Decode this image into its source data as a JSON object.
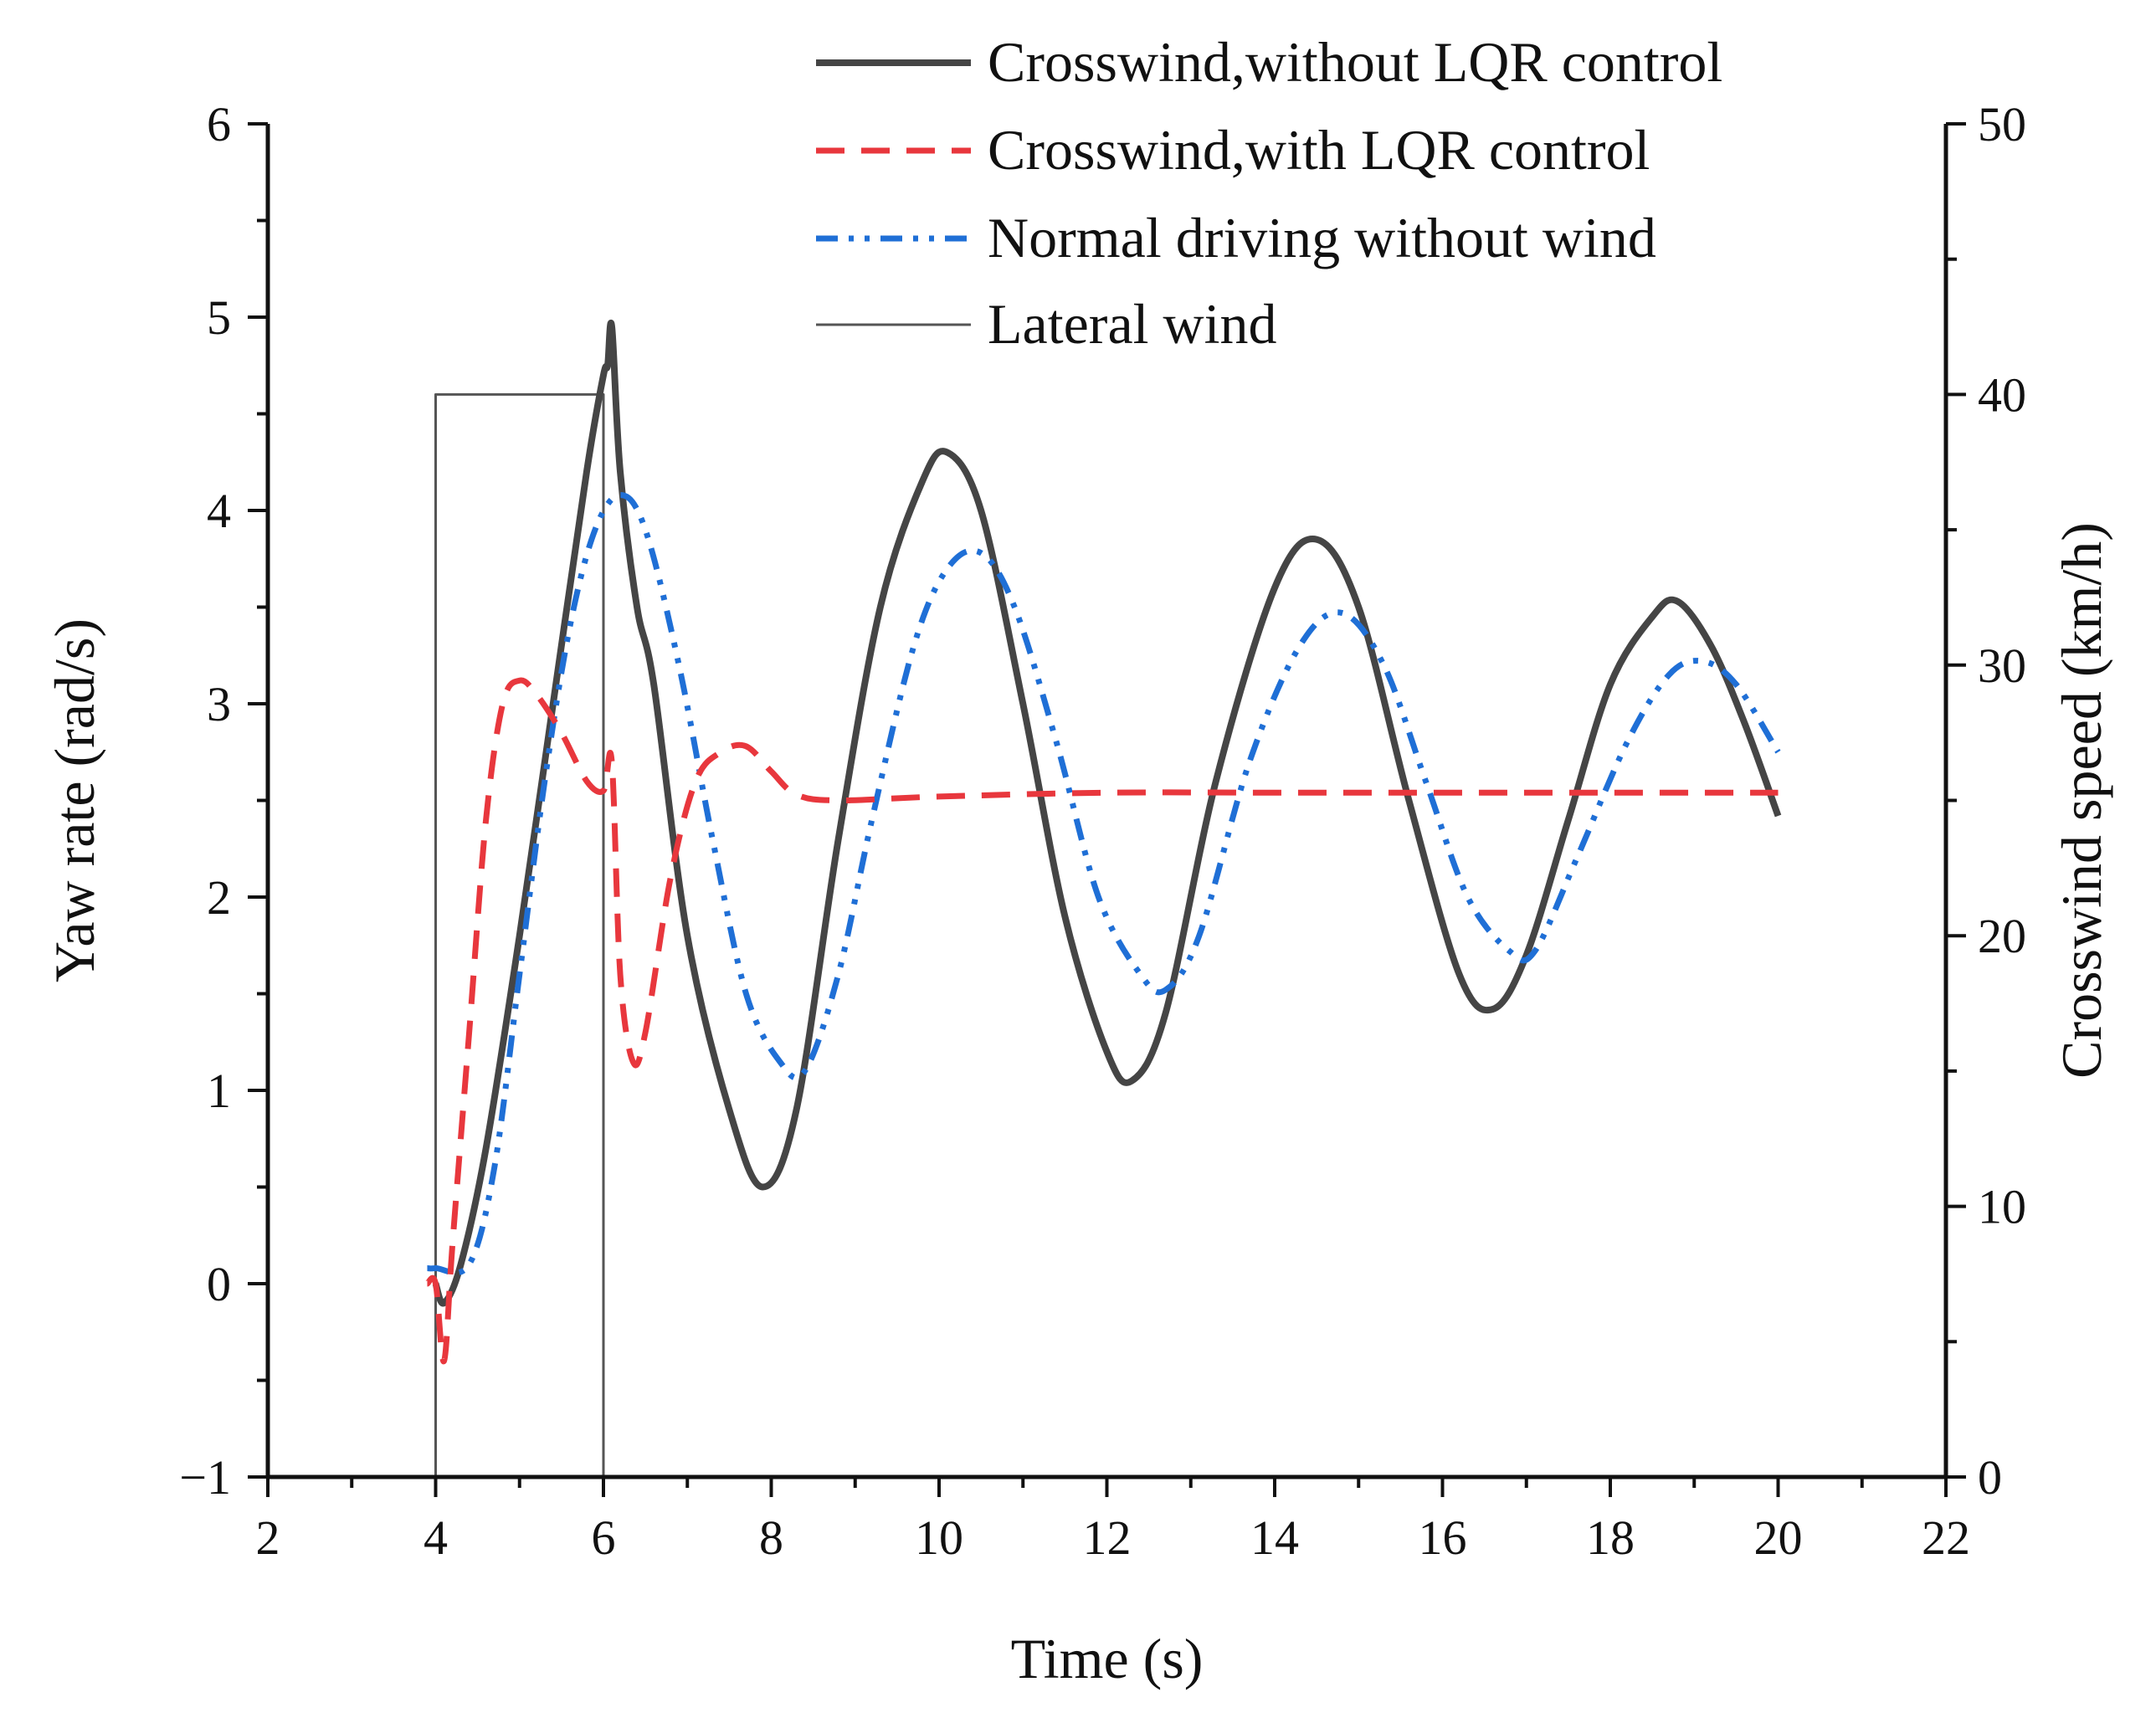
{
  "chart_data": {
    "type": "line",
    "title": "",
    "xlabel": "Time (s)",
    "ylabel": "Yaw rate (rad/s)",
    "y2label": "Crosswind speed (km/h)",
    "xlim": [
      2,
      22
    ],
    "ylim": [
      -1,
      6
    ],
    "y2lim": [
      0,
      50
    ],
    "xticks": [
      2,
      4,
      6,
      8,
      10,
      12,
      14,
      16,
      18,
      20,
      22
    ],
    "xtick_labels": [
      "2",
      "4",
      "6",
      "8",
      "10",
      "12",
      "14",
      "16",
      "18",
      "20",
      "22"
    ],
    "yticks": [
      -1,
      0,
      1,
      2,
      3,
      4,
      5,
      6
    ],
    "ytick_labels": [
      "−1",
      "0",
      "1",
      "2",
      "3",
      "4",
      "5",
      "6"
    ],
    "y2ticks": [
      0,
      10,
      20,
      30,
      40,
      50
    ],
    "y2tick_labels": [
      "0",
      "10",
      "20",
      "30",
      "40",
      "50"
    ],
    "grid": false,
    "legend_position": "top-center",
    "series": [
      {
        "name": "Crosswind,without LQR control",
        "color": "#454545",
        "style": "solid",
        "axis": "left",
        "points": [
          [
            4.0,
            0.0
          ],
          [
            4.1,
            -0.1
          ],
          [
            4.3,
            0.1
          ],
          [
            4.6,
            0.7
          ],
          [
            5.0,
            1.8
          ],
          [
            5.4,
            3.0
          ],
          [
            5.8,
            4.2
          ],
          [
            6.0,
            4.7
          ],
          [
            6.05,
            4.75
          ],
          [
            6.1,
            4.95
          ],
          [
            6.2,
            4.2
          ],
          [
            6.4,
            3.5
          ],
          [
            6.6,
            3.1
          ],
          [
            7.0,
            1.8
          ],
          [
            7.5,
            0.9
          ],
          [
            7.9,
            0.5
          ],
          [
            8.3,
            0.9
          ],
          [
            8.8,
            2.3
          ],
          [
            9.3,
            3.5
          ],
          [
            9.8,
            4.15
          ],
          [
            10.1,
            4.3
          ],
          [
            10.5,
            4.0
          ],
          [
            11.0,
            3.0
          ],
          [
            11.5,
            1.9
          ],
          [
            12.0,
            1.2
          ],
          [
            12.3,
            1.05
          ],
          [
            12.7,
            1.4
          ],
          [
            13.3,
            2.6
          ],
          [
            14.0,
            3.6
          ],
          [
            14.5,
            3.85
          ],
          [
            15.0,
            3.5
          ],
          [
            15.6,
            2.5
          ],
          [
            16.2,
            1.6
          ],
          [
            16.6,
            1.42
          ],
          [
            17.0,
            1.7
          ],
          [
            17.5,
            2.4
          ],
          [
            18.0,
            3.1
          ],
          [
            18.5,
            3.45
          ],
          [
            18.8,
            3.53
          ],
          [
            19.2,
            3.3
          ],
          [
            19.6,
            2.9
          ],
          [
            20.0,
            2.42
          ]
        ]
      },
      {
        "name": "Crosswind,with LQR control",
        "color": "#e8373d",
        "style": "dashed",
        "axis": "left",
        "points": [
          [
            3.9,
            0.0
          ],
          [
            4.0,
            0.0
          ],
          [
            4.1,
            -0.4
          ],
          [
            4.2,
            0.2
          ],
          [
            4.4,
            1.3
          ],
          [
            4.6,
            2.4
          ],
          [
            4.8,
            3.0
          ],
          [
            5.0,
            3.12
          ],
          [
            5.2,
            3.05
          ],
          [
            5.5,
            2.85
          ],
          [
            5.8,
            2.6
          ],
          [
            6.0,
            2.55
          ],
          [
            6.1,
            2.7
          ],
          [
            6.2,
            1.6
          ],
          [
            6.35,
            1.15
          ],
          [
            6.5,
            1.3
          ],
          [
            6.8,
            2.1
          ],
          [
            7.1,
            2.6
          ],
          [
            7.4,
            2.75
          ],
          [
            7.7,
            2.78
          ],
          [
            8.0,
            2.65
          ],
          [
            8.3,
            2.53
          ],
          [
            8.8,
            2.5
          ],
          [
            10.0,
            2.52
          ],
          [
            12.0,
            2.54
          ],
          [
            14.0,
            2.54
          ],
          [
            16.0,
            2.54
          ],
          [
            18.0,
            2.54
          ],
          [
            20.0,
            2.54
          ]
        ]
      },
      {
        "name": "Normal driving without wind",
        "color": "#1f6fd6",
        "style": "dashdotdot",
        "axis": "left",
        "points": [
          [
            3.9,
            0.08
          ],
          [
            4.0,
            0.08
          ],
          [
            4.4,
            0.1
          ],
          [
            4.7,
            0.6
          ],
          [
            5.0,
            1.6
          ],
          [
            5.3,
            2.6
          ],
          [
            5.6,
            3.4
          ],
          [
            5.9,
            3.9
          ],
          [
            6.2,
            4.08
          ],
          [
            6.5,
            3.9
          ],
          [
            6.9,
            3.2
          ],
          [
            7.3,
            2.3
          ],
          [
            7.7,
            1.5
          ],
          [
            8.1,
            1.15
          ],
          [
            8.4,
            1.1
          ],
          [
            8.8,
            1.6
          ],
          [
            9.2,
            2.4
          ],
          [
            9.7,
            3.3
          ],
          [
            10.1,
            3.7
          ],
          [
            10.5,
            3.78
          ],
          [
            10.9,
            3.5
          ],
          [
            11.4,
            2.8
          ],
          [
            11.9,
            2.0
          ],
          [
            12.4,
            1.6
          ],
          [
            12.7,
            1.52
          ],
          [
            13.1,
            1.8
          ],
          [
            13.7,
            2.7
          ],
          [
            14.3,
            3.3
          ],
          [
            14.8,
            3.47
          ],
          [
            15.3,
            3.2
          ],
          [
            15.8,
            2.6
          ],
          [
            16.3,
            2.0
          ],
          [
            16.8,
            1.72
          ],
          [
            17.1,
            1.72
          ],
          [
            17.6,
            2.2
          ],
          [
            18.2,
            2.8
          ],
          [
            18.7,
            3.15
          ],
          [
            19.1,
            3.22
          ],
          [
            19.5,
            3.1
          ],
          [
            20.0,
            2.75
          ]
        ]
      },
      {
        "name": "Lateral wind",
        "color": "#555555",
        "style": "solid-thin",
        "axis": "right",
        "points": [
          [
            4.0,
            0
          ],
          [
            4.0,
            40
          ],
          [
            6.0,
            40
          ],
          [
            6.0,
            0
          ]
        ]
      }
    ]
  }
}
